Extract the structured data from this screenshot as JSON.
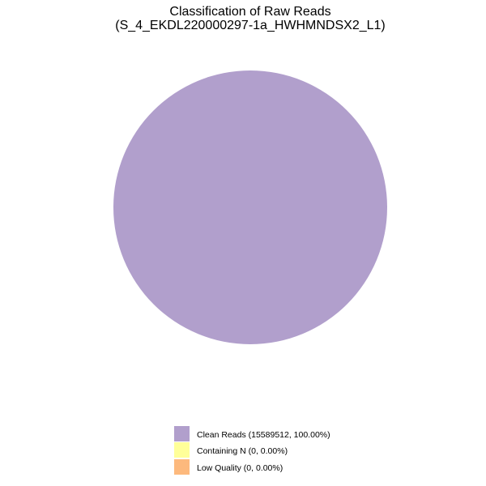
{
  "chart_data": {
    "type": "pie",
    "title": "Classification of Raw Reads",
    "subtitle": "(S_4_EKDL220000297-1a_HWHMNDSX2_L1)",
    "slices": [
      {
        "name": "Clean Reads",
        "value": 15589512,
        "percent": 100.0,
        "color": "#B19FCC",
        "legend_label": "Clean Reads (15589512, 100.00%)"
      },
      {
        "name": "Containing N",
        "value": 0,
        "percent": 0.0,
        "color": "#FFFF99",
        "legend_label": "Containing N (0, 0.00%)"
      },
      {
        "name": "Low Quality",
        "value": 0,
        "percent": 0.0,
        "color": "#FDB97D",
        "legend_label": "Low Quality (0, 0.00%)"
      }
    ],
    "legend_position": "bottom-center"
  }
}
